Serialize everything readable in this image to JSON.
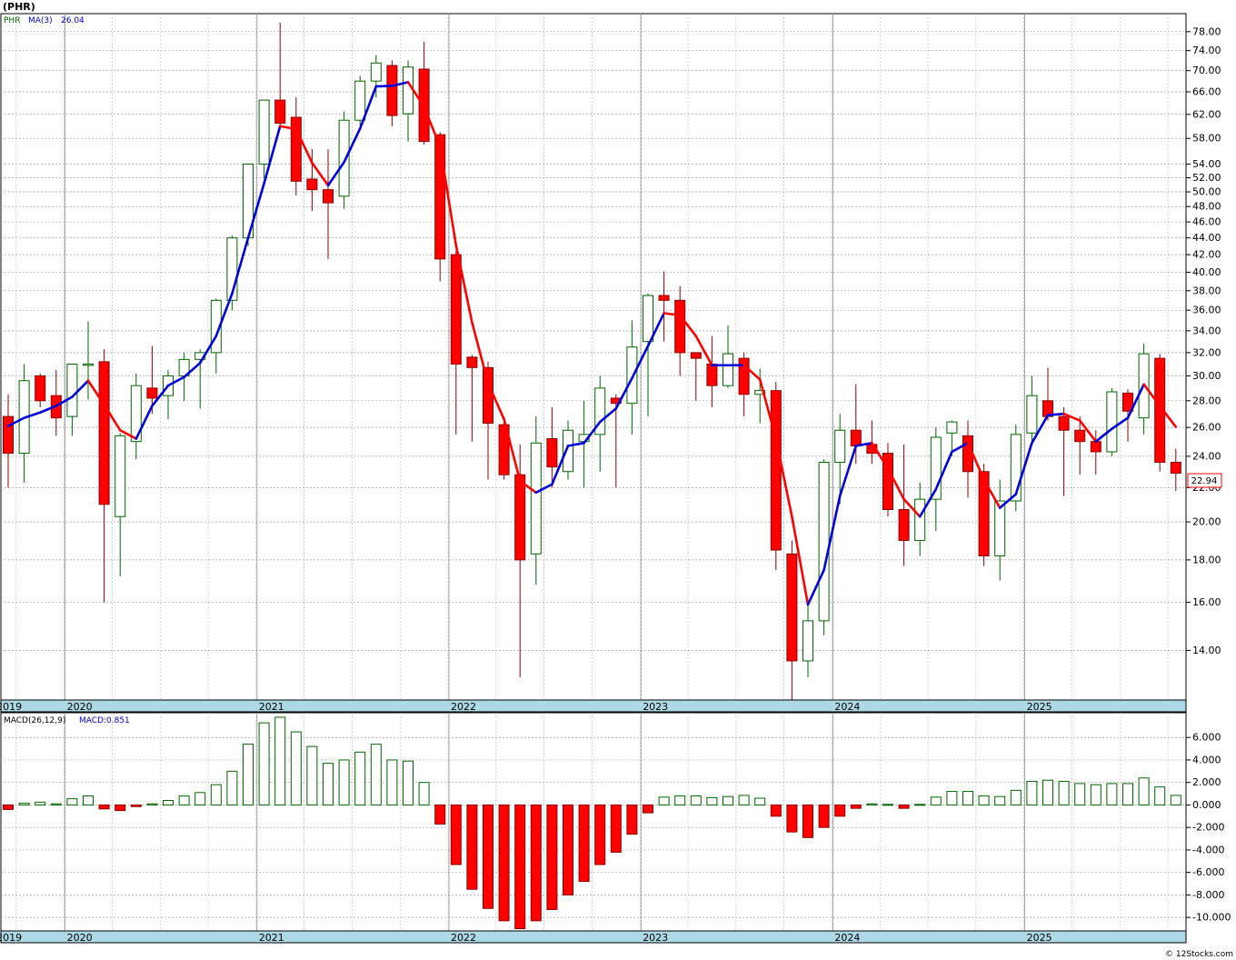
{
  "title": "(PHR)",
  "legend": {
    "symbol": "PHR",
    "ma_label": "MA(3)",
    "ma_value": "26.04"
  },
  "macd_legend": {
    "params": "MACD(26,12,9)",
    "value": "MACD:0.851"
  },
  "last_price": "22.94",
  "watermark": "© 12Stocks.com",
  "colors": {
    "up": "#006400",
    "down": "#ff0000",
    "ma_up": "#0000dd",
    "ma_down": "#ff0000",
    "axis_band": "#add8e6"
  },
  "chart_data": [
    {
      "type": "candlestick",
      "scale": "log",
      "ylim": [
        12.2,
        82
      ],
      "y_ticks": [
        "78.00",
        "74.00",
        "70.00",
        "66.00",
        "62.00",
        "58.00",
        "54.00",
        "52.00",
        "50.00",
        "48.00",
        "46.00",
        "44.00",
        "42.00",
        "40.00",
        "38.00",
        "36.00",
        "34.00",
        "32.00",
        "30.00",
        "28.00",
        "26.00",
        "24.00",
        "22.00",
        "20.00",
        "18.00",
        "16.00",
        "14.00"
      ],
      "x_labels": [
        "2019",
        "2020",
        "2021",
        "2022",
        "2023",
        "2024",
        "2025"
      ],
      "series": [
        {
          "name": "PHR",
          "ohlc": [
            [
              26.8,
              28.5,
              22.0,
              24.2
            ],
            [
              24.2,
              31.0,
              22.3,
              29.6
            ],
            [
              30.0,
              30.2,
              27.5,
              28.0
            ],
            [
              28.4,
              30.5,
              25.4,
              26.7
            ],
            [
              26.8,
              31.0,
              25.4,
              31.0
            ],
            [
              31.0,
              34.9,
              28.1,
              31.0
            ],
            [
              31.2,
              32.3,
              16.0,
              21.0
            ],
            [
              20.3,
              25.6,
              17.2,
              25.4
            ],
            [
              25.0,
              30.2,
              23.8,
              29.2
            ],
            [
              29.0,
              32.6,
              27.0,
              28.2
            ],
            [
              28.4,
              30.5,
              26.6,
              30.0
            ],
            [
              30.0,
              32.0,
              28.0,
              31.4
            ],
            [
              31.4,
              32.3,
              27.4,
              32.0
            ],
            [
              32.0,
              37.2,
              30.2,
              37.0
            ],
            [
              37.0,
              44.3,
              36.0,
              44.0
            ],
            [
              44.0,
              54.0,
              43.0,
              54.0
            ],
            [
              54.0,
              64.0,
              52.0,
              64.5
            ],
            [
              64.5,
              80.0,
              59.5,
              60.5
            ],
            [
              61.5,
              65.0,
              49.5,
              51.5
            ],
            [
              51.8,
              56.3,
              47.4,
              50.3
            ],
            [
              50.3,
              56.3,
              41.5,
              48.5
            ],
            [
              49.4,
              62.5,
              47.7,
              61.0
            ],
            [
              61.0,
              69.0,
              60.0,
              68.0
            ],
            [
              68.0,
              73.1,
              65.0,
              71.5
            ],
            [
              71.0,
              72.0,
              60.0,
              61.8
            ],
            [
              62.1,
              72.0,
              57.5,
              70.7
            ],
            [
              70.3,
              75.8,
              57.0,
              57.5
            ],
            [
              58.6,
              59.0,
              39.0,
              41.5
            ],
            [
              42.0,
              42.4,
              25.5,
              31.0
            ],
            [
              31.6,
              31.8,
              25.0,
              30.7
            ],
            [
              30.7,
              31.2,
              22.5,
              26.3
            ],
            [
              26.2,
              26.8,
              22.5,
              22.8
            ],
            [
              22.8,
              24.8,
              13.0,
              18.0
            ],
            [
              18.3,
              26.8,
              16.8,
              24.9
            ],
            [
              25.2,
              27.5,
              22.0,
              23.3
            ],
            [
              23.0,
              26.5,
              22.5,
              25.8
            ],
            [
              25.0,
              28.0,
              22.0,
              25.5
            ],
            [
              25.5,
              30.0,
              23.0,
              29.0
            ],
            [
              28.2,
              28.5,
              22.0,
              27.8
            ],
            [
              27.8,
              35.0,
              25.5,
              32.5
            ],
            [
              33.0,
              37.7,
              26.8,
              37.5
            ],
            [
              37.5,
              40.1,
              33.0,
              37.0
            ],
            [
              37.0,
              38.5,
              30.0,
              32.0
            ],
            [
              32.0,
              32.0,
              28.0,
              31.5
            ],
            [
              31.0,
              33.5,
              27.5,
              29.2
            ],
            [
              29.2,
              34.5,
              29.0,
              31.9
            ],
            [
              31.5,
              32.0,
              26.8,
              28.5
            ],
            [
              28.5,
              30.6,
              26.3,
              28.8
            ],
            [
              28.8,
              29.5,
              17.5,
              18.5
            ],
            [
              18.3,
              19.0,
              12.2,
              13.6
            ],
            [
              13.6,
              16.0,
              13.0,
              15.2
            ],
            [
              15.2,
              23.8,
              14.6,
              23.6
            ],
            [
              23.6,
              27.0,
              21.0,
              25.8
            ],
            [
              25.8,
              29.3,
              23.5,
              24.7
            ],
            [
              24.8,
              26.5,
              23.5,
              24.2
            ],
            [
              24.2,
              24.9,
              20.3,
              20.7
            ],
            [
              20.7,
              24.8,
              17.7,
              19.0
            ],
            [
              19.0,
              22.3,
              18.2,
              21.3
            ],
            [
              21.3,
              26.0,
              19.5,
              25.3
            ],
            [
              25.6,
              26.5,
              24.0,
              26.4
            ],
            [
              25.4,
              26.5,
              21.4,
              23.0
            ],
            [
              23.0,
              23.5,
              17.7,
              18.2
            ],
            [
              18.2,
              22.5,
              17.0,
              21.2
            ],
            [
              21.2,
              26.2,
              20.6,
              25.5
            ],
            [
              25.6,
              30.0,
              25.0,
              28.4
            ],
            [
              28.0,
              30.7,
              26.5,
              26.8
            ],
            [
              26.8,
              27.5,
              21.5,
              25.8
            ],
            [
              25.8,
              26.8,
              22.8,
              25.0
            ],
            [
              25.0,
              25.8,
              22.8,
              24.3
            ],
            [
              24.3,
              29.0,
              24.0,
              28.7
            ],
            [
              28.6,
              28.9,
              25.0,
              27.2
            ],
            [
              26.7,
              32.8,
              25.5,
              31.9
            ],
            [
              31.5,
              31.9,
              23.0,
              23.6
            ],
            [
              23.6,
              24.5,
              21.8,
              22.9
            ]
          ]
        },
        {
          "name": "MA(3)",
          "values": [
            26.1,
            26.7,
            27.1,
            27.6,
            28.3,
            29.6,
            27.7,
            25.8,
            25.2,
            27.6,
            29.2,
            29.9,
            31.1,
            33.5,
            37.7,
            44.0,
            51.2,
            60.0,
            59.5,
            54.2,
            50.9,
            54.3,
            59.6,
            67.0,
            67.1,
            67.8,
            63.3,
            56.7,
            43.1,
            34.8,
            29.4,
            26.6,
            22.4,
            21.7,
            22.2,
            24.7,
            24.9,
            26.4,
            27.4,
            29.8,
            32.6,
            35.7,
            35.5,
            33.5,
            30.9,
            30.9,
            30.9,
            29.7,
            25.2,
            20.3,
            15.9,
            17.5,
            21.5,
            24.7,
            24.9,
            23.2,
            21.3,
            20.3,
            21.9,
            24.3,
            24.9,
            22.5,
            20.8,
            21.6,
            24.9,
            26.9,
            27.0,
            26.5,
            25.0,
            25.9,
            26.7,
            29.3,
            27.6,
            26.04
          ]
        }
      ]
    },
    {
      "type": "bar",
      "title": "MACD(26,12,9)",
      "ylim": [
        -11.2,
        8.2
      ],
      "y_ticks": [
        "6.000",
        "4.000",
        "2.000",
        "0.000",
        "-2.000",
        "-4.000",
        "-6.000",
        "-8.000",
        "-10.000"
      ],
      "x_labels": [
        "2019",
        "2020",
        "2021",
        "2022",
        "2023",
        "2024",
        "2025"
      ],
      "values": [
        -0.4,
        0.15,
        0.25,
        0.1,
        0.55,
        0.8,
        -0.35,
        -0.5,
        -0.15,
        0.1,
        0.4,
        0.8,
        1.1,
        1.8,
        3.0,
        5.4,
        7.3,
        7.8,
        6.5,
        5.2,
        3.7,
        4.0,
        4.7,
        5.4,
        4.0,
        3.9,
        2.0,
        -1.7,
        -5.3,
        -7.5,
        -9.2,
        -10.3,
        -11.0,
        -10.3,
        -9.3,
        -8.0,
        -6.8,
        -5.3,
        -4.2,
        -2.6,
        -0.7,
        0.7,
        0.8,
        0.8,
        0.65,
        0.75,
        0.85,
        0.6,
        -1.0,
        -2.4,
        -2.9,
        -2.0,
        -1.0,
        -0.3,
        0.1,
        0.05,
        -0.3,
        0.05,
        0.7,
        1.2,
        1.2,
        0.8,
        0.75,
        1.3,
        2.1,
        2.2,
        2.1,
        1.9,
        1.8,
        1.9,
        1.9,
        2.4,
        1.6,
        0.851
      ]
    }
  ]
}
